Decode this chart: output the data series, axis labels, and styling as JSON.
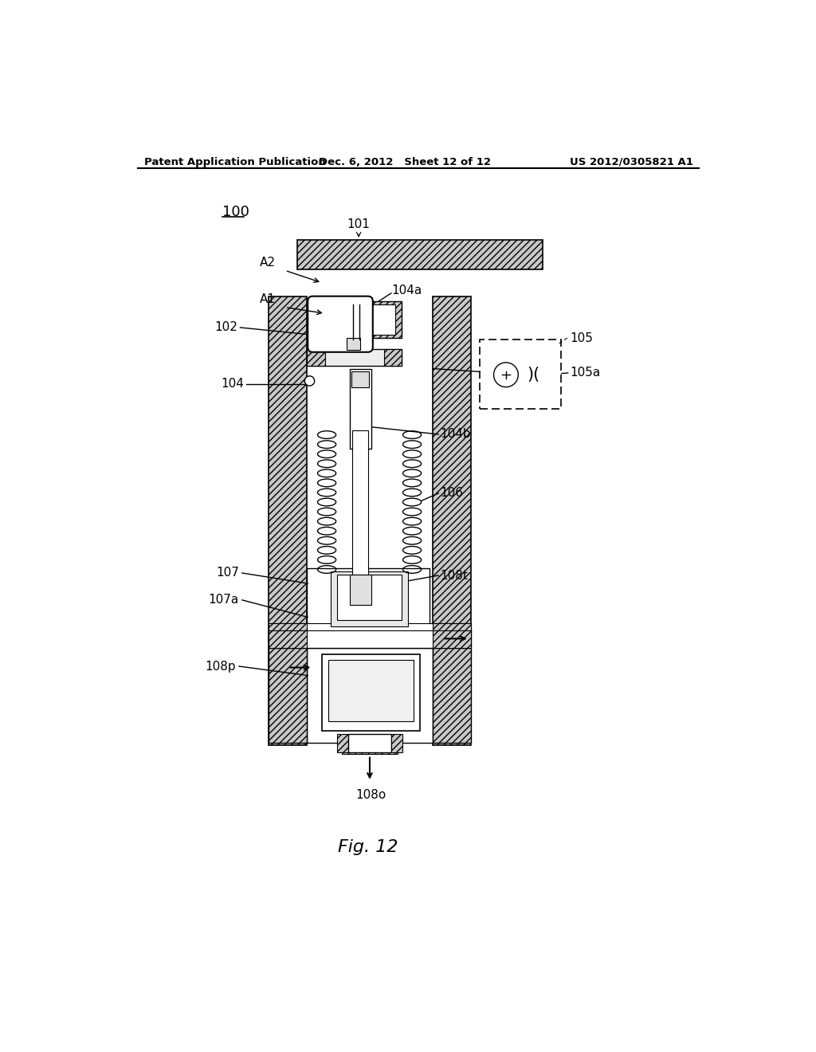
{
  "patent_header_left": "Patent Application Publication",
  "patent_header_center": "Dec. 6, 2012   Sheet 12 of 12",
  "patent_header_right": "US 2012/0305821 A1",
  "bg_color": "#ffffff",
  "label_100": "100",
  "label_101": "101",
  "label_102": "102",
  "label_104": "104",
  "label_104a": "104a",
  "label_104b": "104b",
  "label_105": "105",
  "label_105a": "105a",
  "label_106": "106",
  "label_107": "107",
  "label_107a": "107a",
  "label_108t": "108t",
  "label_108p": "108p",
  "label_108o": "108o",
  "label_A1": "A1",
  "label_A2": "A2",
  "fig_label": "Fig. 12"
}
